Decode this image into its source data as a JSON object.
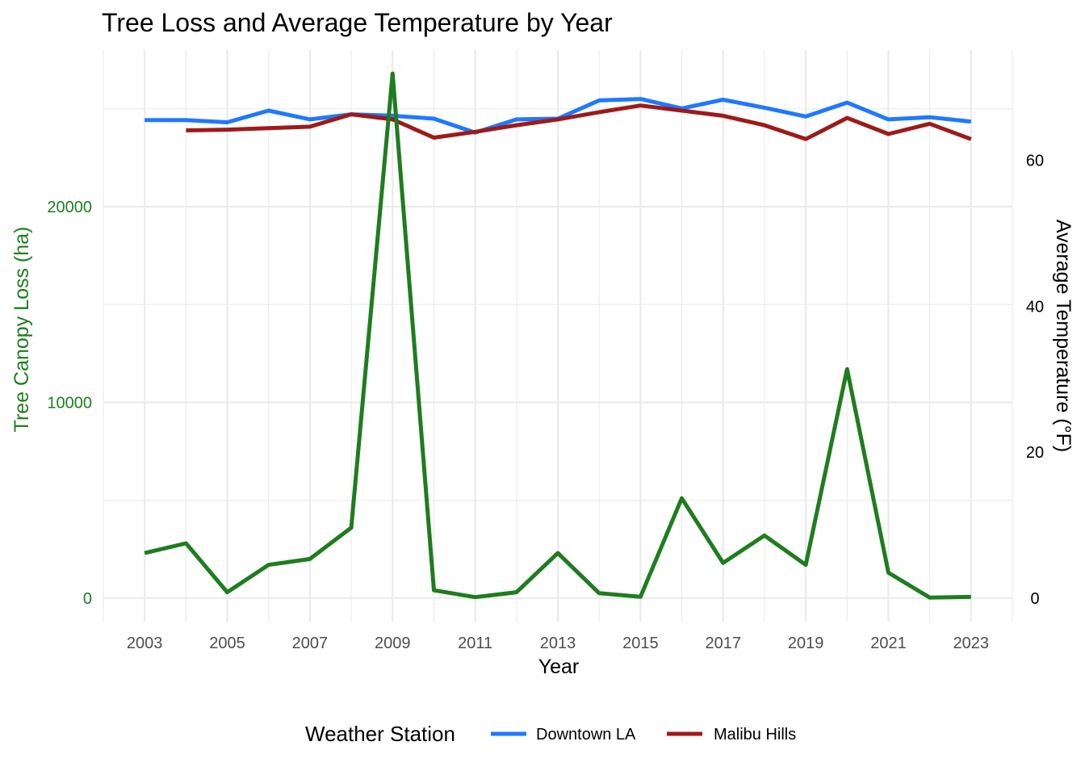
{
  "chart_data": {
    "type": "line",
    "title": "Tree Loss and Average Temperature by Year",
    "xlabel": "Year",
    "ylabel_left": "Tree Canopy Loss (ha)",
    "ylabel_right": "Average Temperature (°F)",
    "x_ticks": [
      "2003",
      "2005",
      "2007",
      "2009",
      "2011",
      "2013",
      "2015",
      "2017",
      "2019",
      "2021",
      "2023"
    ],
    "y_left_ticks": [
      "0",
      "10000",
      "20000"
    ],
    "y_right_ticks": [
      "0",
      "20",
      "40",
      "60"
    ],
    "xlim": [
      2002,
      2024
    ],
    "ylim_left": [
      -1200,
      28000
    ],
    "ylim_right": [
      -3.2,
      75.1
    ],
    "grid": true,
    "legend_position": "bottom",
    "legend_title": "Weather Station",
    "colors": {
      "tree_loss": "#1e7d1e",
      "downtown": "#1f78ff",
      "malibu": "#9e1a1a",
      "grid": "#ebebeb"
    },
    "series": [
      {
        "key": "tree_loss",
        "axis": "left",
        "x": [
          2003,
          2004,
          2005,
          2006,
          2007,
          2008,
          2009,
          2010,
          2011,
          2012,
          2013,
          2014,
          2015,
          2016,
          2017,
          2018,
          2019,
          2020,
          2021,
          2022,
          2023
        ],
        "values": [
          2300,
          2800,
          300,
          1700,
          2000,
          3600,
          26800,
          400,
          50,
          300,
          2300,
          250,
          70,
          5100,
          1800,
          3200,
          1700,
          11700,
          1300,
          30,
          60
        ]
      },
      {
        "key": "downtown",
        "name": "Downtown LA",
        "axis": "right",
        "x": [
          2003,
          2004,
          2005,
          2006,
          2007,
          2008,
          2009,
          2010,
          2011,
          2012,
          2013,
          2014,
          2015,
          2016,
          2017,
          2018,
          2019,
          2020,
          2021,
          2022,
          2023
        ],
        "values": [
          65.5,
          65.5,
          65.2,
          66.8,
          65.6,
          66.3,
          66.1,
          65.7,
          63.8,
          65.6,
          65.7,
          68.2,
          68.4,
          67.1,
          68.3,
          67.2,
          66.0,
          67.9,
          65.6,
          65.9,
          65.3
        ]
      },
      {
        "key": "malibu",
        "name": "Malibu Hills",
        "axis": "right",
        "x": [
          2004,
          2005,
          2006,
          2007,
          2008,
          2009,
          2010,
          2011,
          2012,
          2013,
          2014,
          2015,
          2016,
          2017,
          2018,
          2019,
          2020,
          2021,
          2022,
          2023
        ],
        "values": [
          64.1,
          64.2,
          64.4,
          64.6,
          66.3,
          65.6,
          63.1,
          63.9,
          64.8,
          65.6,
          66.6,
          67.5,
          66.8,
          66.1,
          64.8,
          62.9,
          65.8,
          63.6,
          65.0,
          62.9
        ]
      }
    ]
  }
}
